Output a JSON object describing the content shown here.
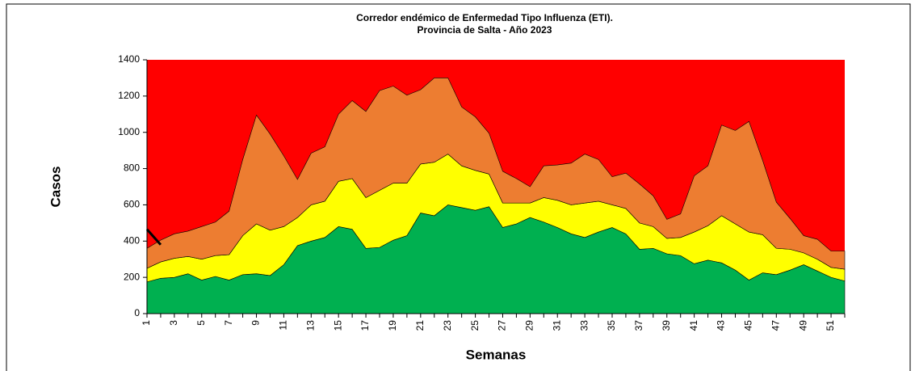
{
  "chart_data": {
    "type": "stacked_area",
    "title": "Corredor endémico de Enfermedad Tipo Influenza (ETI).",
    "subtitle": "Provincia de Salta - Año 2023",
    "x_label": "Semanas",
    "y_label": "Casos",
    "categories": [
      "1",
      null,
      "3",
      null,
      "5",
      null,
      "7",
      null,
      "9",
      null,
      "11",
      null,
      "13",
      null,
      "15",
      null,
      "17",
      null,
      "19",
      null,
      "21",
      null,
      "23",
      null,
      "25",
      null,
      "27",
      null,
      "29",
      null,
      "31",
      null,
      "33",
      null,
      "35",
      null,
      "37",
      null,
      "39",
      null,
      "41",
      null,
      "43",
      null,
      "45",
      null,
      "47",
      null,
      "49",
      null,
      "51",
      null
    ],
    "ylim": [
      0,
      1400
    ],
    "yticks": [
      0,
      200,
      400,
      600,
      800,
      1000,
      1200,
      1400
    ],
    "background_color": "#ff0000",
    "series": [
      {
        "color": "#00b050",
        "values": [
          175,
          195,
          200,
          220,
          185,
          205,
          185,
          215,
          220,
          210,
          270,
          375,
          400,
          420,
          480,
          465,
          360,
          365,
          405,
          430,
          555,
          540,
          600,
          585,
          570,
          590,
          475,
          495,
          530,
          505,
          475,
          440,
          420,
          450,
          475,
          440,
          355,
          360,
          330,
          320,
          275,
          295,
          280,
          240,
          185,
          225,
          215,
          240,
          270,
          235,
          200,
          180
        ]
      },
      {
        "color": "#ffff00",
        "values": [
          75,
          90,
          105,
          95,
          115,
          115,
          140,
          215,
          275,
          250,
          210,
          155,
          200,
          200,
          250,
          280,
          280,
          315,
          315,
          290,
          270,
          295,
          280,
          230,
          220,
          180,
          135,
          115,
          80,
          135,
          150,
          160,
          190,
          170,
          125,
          140,
          145,
          120,
          85,
          100,
          175,
          190,
          260,
          255,
          265,
          210,
          145,
          115,
          65,
          65,
          55,
          65
        ]
      },
      {
        "color": "#ed7d31",
        "values": [
          110,
          120,
          135,
          140,
          180,
          185,
          240,
          420,
          600,
          530,
          390,
          210,
          285,
          300,
          370,
          430,
          475,
          550,
          535,
          485,
          410,
          465,
          420,
          325,
          295,
          225,
          175,
          135,
          90,
          175,
          195,
          230,
          270,
          230,
          155,
          195,
          215,
          170,
          105,
          130,
          310,
          330,
          500,
          515,
          610,
          410,
          255,
          170,
          95,
          110,
          90,
          100
        ]
      }
    ],
    "line": {
      "color": "#000000",
      "values": [
        465,
        380,
        null,
        null,
        null,
        null,
        null,
        null,
        null,
        null,
        null,
        null,
        null,
        null,
        null,
        null,
        null,
        null,
        null,
        null,
        null,
        null,
        null,
        null,
        null,
        null,
        null,
        null,
        null,
        null,
        null,
        null,
        null,
        null,
        null,
        null,
        null,
        null,
        null,
        null,
        null,
        null,
        null,
        null,
        null,
        null,
        null,
        null,
        null,
        null,
        null,
        null
      ]
    }
  }
}
